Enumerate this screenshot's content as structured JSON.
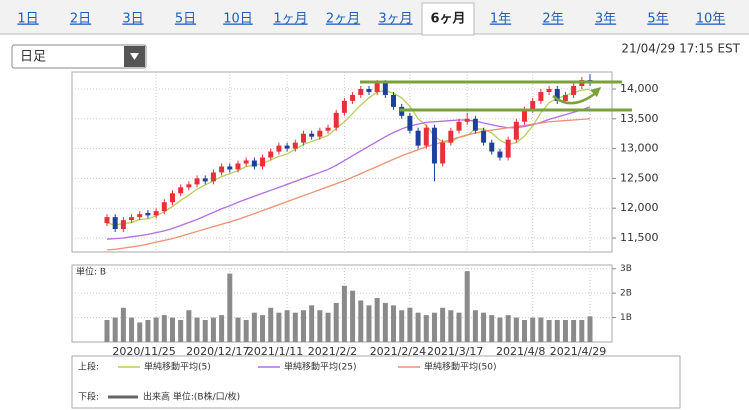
{
  "tabs": [
    "1日",
    "2日",
    "3日",
    "5日",
    "10日",
    "1ヶ月",
    "2ヶ月",
    "3ヶ月",
    "6ヶ月",
    "1年",
    "2年",
    "3年",
    "5年",
    "10年"
  ],
  "selected_tab": 8,
  "interval": "日足",
  "timestamp": "21/04/29 17:15 EST",
  "chart_data": [
    {
      "type": "candlestick",
      "legend_label": "上段:",
      "up_color": "#e8303a",
      "down_color": "#1f3f9f",
      "categories": [
        null,
        null,
        null,
        null,
        null,
        null,
        "2020/11/25",
        null,
        null,
        null,
        null,
        null,
        null,
        null,
        null,
        "2020/12/17",
        null,
        null,
        null,
        null,
        null,
        null,
        "2021/1/11",
        null,
        null,
        null,
        null,
        null,
        null,
        "2021/2/2",
        null,
        null,
        null,
        null,
        null,
        null,
        null,
        "2021/2/24",
        null,
        null,
        null,
        null,
        null,
        null,
        "2021/3/17",
        null,
        null,
        null,
        null,
        null,
        null,
        null,
        "2021/4/8",
        null,
        null,
        null,
        null,
        null,
        null,
        "2021/4/29"
      ],
      "open": [
        11750,
        11850,
        11650,
        11800,
        11850,
        11920,
        11880,
        11950,
        12100,
        12250,
        12350,
        12400,
        12500,
        12450,
        12600,
        12700,
        12650,
        12750,
        12800,
        12700,
        12850,
        12950,
        13050,
        13000,
        13100,
        13250,
        13200,
        13300,
        13350,
        13600,
        13800,
        13900,
        14000,
        13950,
        14100,
        13900,
        13700,
        13550,
        13300,
        13050,
        13350,
        12750,
        13100,
        13300,
        13450,
        13500,
        13300,
        13100,
        12950,
        12850,
        13150,
        13450,
        13650,
        13800,
        13950,
        14000,
        13800,
        13900,
        14050,
        14150
      ],
      "high": [
        11900,
        11900,
        11850,
        11900,
        11950,
        11970,
        12000,
        12150,
        12300,
        12400,
        12450,
        12550,
        12550,
        12650,
        12750,
        12750,
        12800,
        12850,
        12850,
        12900,
        13000,
        13100,
        13100,
        13150,
        13300,
        13300,
        13350,
        13400,
        13650,
        13850,
        13950,
        14050,
        14050,
        14150,
        14150,
        13950,
        13750,
        13600,
        13350,
        13400,
        13400,
        13150,
        13350,
        13500,
        13600,
        13550,
        13350,
        13150,
        13000,
        13200,
        13500,
        13700,
        13850,
        14000,
        14050,
        14050,
        13950,
        14100,
        14200,
        14250
      ],
      "low": [
        11700,
        11600,
        11600,
        11750,
        11800,
        11830,
        11830,
        11900,
        12050,
        12200,
        12300,
        12350,
        12400,
        12400,
        12550,
        12600,
        12600,
        12700,
        12650,
        12650,
        12800,
        12900,
        12950,
        12950,
        13050,
        13150,
        13150,
        13250,
        13300,
        13550,
        13750,
        13850,
        13900,
        13900,
        13850,
        13650,
        13500,
        13250,
        13000,
        13000,
        12450,
        12700,
        13050,
        13250,
        13400,
        13250,
        13050,
        12900,
        12800,
        12800,
        13100,
        13400,
        13600,
        13750,
        13900,
        13750,
        13750,
        13850,
        14000,
        14050
      ],
      "close": [
        11850,
        11650,
        11800,
        11850,
        11900,
        11880,
        11950,
        12100,
        12250,
        12350,
        12400,
        12500,
        12450,
        12600,
        12700,
        12650,
        12750,
        12800,
        12700,
        12850,
        12950,
        13050,
        13000,
        13100,
        13250,
        13200,
        13300,
        13350,
        13600,
        13800,
        13900,
        14000,
        13950,
        14100,
        13900,
        13700,
        13550,
        13300,
        13050,
        13350,
        12750,
        13100,
        13300,
        13450,
        13500,
        13300,
        13100,
        12950,
        12850,
        13150,
        13450,
        13650,
        13800,
        13950,
        14000,
        13800,
        13900,
        14050,
        14150,
        14100
      ],
      "series": [
        {
          "name": "単純移動平均(5)",
          "color": "#b5cf5c",
          "values": [
            11750,
            11720,
            11740,
            11760,
            11810,
            11820,
            11870,
            11940,
            12030,
            12130,
            12220,
            12320,
            12390,
            12460,
            12530,
            12580,
            12630,
            12700,
            12720,
            12750,
            12810,
            12870,
            12910,
            12990,
            13070,
            13120,
            13170,
            13220,
            13340,
            13450,
            13590,
            13730,
            13850,
            13950,
            13970,
            13930,
            13850,
            13710,
            13500,
            13390,
            13210,
            13110,
            13110,
            13190,
            13220,
            13330,
            13330,
            13260,
            13140,
            13070,
            13100,
            13210,
            13380,
            13600,
            13770,
            13840,
            13890,
            13940,
            13980,
            14000
          ]
        },
        {
          "name": "単純移動平均(25)",
          "color": "#b36de0",
          "values": [
            11480,
            11490,
            11500,
            11520,
            11540,
            11560,
            11590,
            11620,
            11660,
            11710,
            11760,
            11810,
            11870,
            11930,
            11990,
            12040,
            12100,
            12150,
            12200,
            12250,
            12300,
            12350,
            12400,
            12450,
            12500,
            12550,
            12600,
            12650,
            12720,
            12800,
            12880,
            12960,
            13040,
            13120,
            13200,
            13270,
            13330,
            13380,
            13410,
            13440,
            13450,
            13460,
            13470,
            13480,
            13480,
            13460,
            13430,
            13400,
            13370,
            13350,
            13350,
            13370,
            13400,
            13440,
            13490,
            13530,
            13570,
            13610,
            13650,
            13700
          ]
        },
        {
          "name": "単純移動平均(50)",
          "color": "#ee9073",
          "values": [
            11300,
            11310,
            11330,
            11350,
            11370,
            11400,
            11430,
            11460,
            11490,
            11530,
            11570,
            11610,
            11650,
            11690,
            11730,
            11770,
            11810,
            11860,
            11910,
            11960,
            12010,
            12060,
            12110,
            12160,
            12210,
            12260,
            12310,
            12360,
            12410,
            12460,
            12520,
            12580,
            12640,
            12700,
            12760,
            12820,
            12880,
            12930,
            12980,
            13030,
            13070,
            13110,
            13150,
            13190,
            13230,
            13260,
            13290,
            13310,
            13330,
            13350,
            13370,
            13390,
            13410,
            13430,
            13450,
            13460,
            13470,
            13480,
            13490,
            13500
          ]
        }
      ],
      "ylim": [
        11265,
        14285
      ],
      "yticks": [
        {
          "value": 11500,
          "label": "11,500"
        },
        {
          "value": 12000,
          "label": "12,000"
        },
        {
          "value": 12500,
          "label": "12,500"
        },
        {
          "value": 13000,
          "label": "13,000"
        },
        {
          "value": 13500,
          "label": "13,500"
        },
        {
          "value": 14000,
          "label": "14,000"
        }
      ],
      "grid": true
    },
    {
      "type": "bar",
      "legend_label": "下段:",
      "unit_label": "単位: B",
      "series": [
        {
          "name": "出来高 単位:(B株/口/枚)",
          "color": "#8a8a8a",
          "values": [
            0.9,
            1.0,
            1.4,
            1.0,
            0.8,
            0.9,
            1.0,
            1.1,
            1.0,
            0.9,
            1.3,
            1.0,
            0.9,
            1.0,
            1.1,
            2.8,
            1.0,
            0.9,
            1.2,
            1.1,
            1.4,
            1.2,
            1.3,
            1.2,
            1.3,
            1.5,
            1.3,
            1.2,
            1.6,
            2.3,
            2.1,
            1.7,
            1.5,
            1.8,
            1.6,
            1.5,
            1.3,
            1.4,
            1.2,
            1.1,
            1.2,
            1.4,
            1.3,
            1.2,
            2.9,
            1.3,
            1.2,
            1.1,
            1.0,
            1.1,
            1.0,
            0.9,
            1.0,
            1.0,
            0.9,
            0.9,
            0.9,
            0.9,
            0.9,
            1.05
          ]
        }
      ],
      "ylim": [
        0,
        3.07
      ],
      "yticks": [
        {
          "value": 1,
          "label": "1B"
        },
        {
          "value": 2,
          "label": "2B"
        },
        {
          "value": 3,
          "label": "3B"
        }
      ],
      "grid": true
    }
  ]
}
